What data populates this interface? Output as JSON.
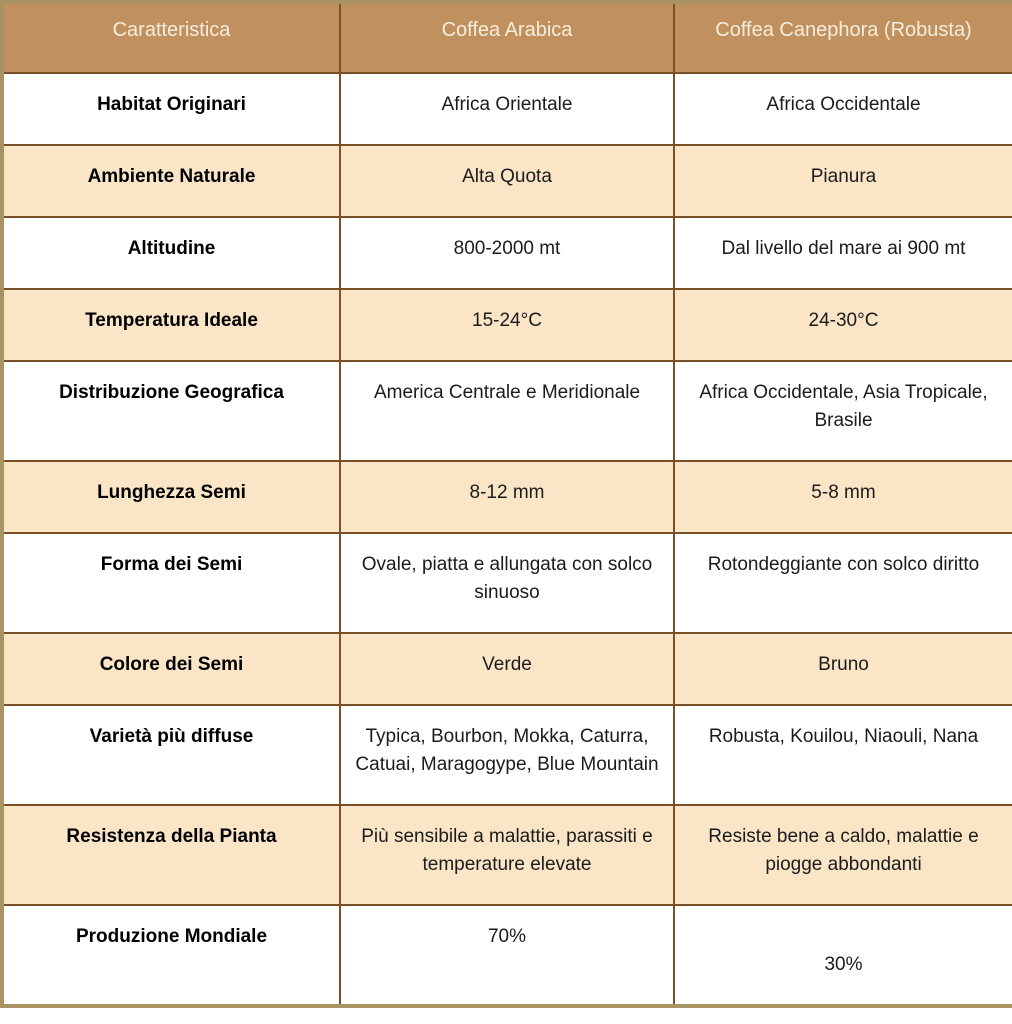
{
  "table": {
    "columns": [
      "Caratteristica",
      "Coffea Arabica",
      "Coffea Canephora (Robusta)"
    ],
    "rows": [
      {
        "feature": "Habitat Originari",
        "arabica": "Africa Orientale",
        "robusta": "Africa Occidentale"
      },
      {
        "feature": "Ambiente Naturale",
        "arabica": "Alta Quota",
        "robusta": "Pianura"
      },
      {
        "feature": "Altitudine",
        "arabica": "800-2000 mt",
        "robusta": "Dal livello del mare ai 900 mt"
      },
      {
        "feature": "Temperatura Ideale",
        "arabica": "15-24°C",
        "robusta": "24-30°C"
      },
      {
        "feature": "Distribuzione Geografica",
        "arabica": "America Centrale e Meridionale",
        "robusta": "Africa Occidentale, Asia Tropicale, Brasile"
      },
      {
        "feature": "Lunghezza Semi",
        "arabica": "8-12 mm",
        "robusta": "5-8 mm"
      },
      {
        "feature": "Forma dei Semi",
        "arabica": "Ovale, piatta e allungata con solco sinuoso",
        "robusta": "Rotondeggiante con solco diritto"
      },
      {
        "feature": "Colore dei Semi",
        "arabica": "Verde",
        "robusta": "Bruno"
      },
      {
        "feature": "Varietà più diffuse",
        "arabica": "Typica, Bourbon, Mokka, Caturra, Catuai, Maragogype, Blue Mountain",
        "robusta": "Robusta, Kouilou, Niaouli, Nana"
      },
      {
        "feature": "Resistenza della Pianta",
        "arabica": "Più sensibile a malattie, parassiti e temperature elevate",
        "robusta": "Resiste bene a caldo, malattie e piogge abbondanti"
      },
      {
        "feature": "Produzione Mondiale",
        "arabica": "70%",
        "robusta": "\n30%"
      }
    ]
  },
  "colors": {
    "header_bg": "#C1905F",
    "header_text": "#F5EEDE",
    "row_alt_bg": "#FAE5C7",
    "row_bg": "#FFFFFF",
    "border_inner": "#7B4F28",
    "border_outer": "#A99263",
    "body_text": "#1B1B1B"
  }
}
